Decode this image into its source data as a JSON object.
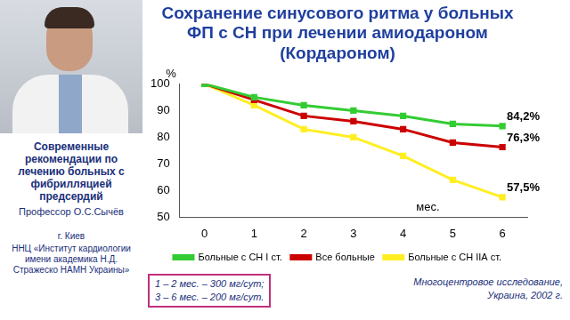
{
  "slide": {
    "heading": "Современные рекомендации по лечению больных с фибрилляцией предсердий",
    "author": "Профессор О.С.Сычёв",
    "city": "г. Киев",
    "institution": "ННЦ «Институт кардиологии имени академика Н.Д. Стражеско НАМН Украины»"
  },
  "chart_data": {
    "type": "line",
    "title": [
      "Сохранение синусового ритма у больных",
      "ФП с СН при лечении амиодароном",
      "(Кордароном)"
    ],
    "xlabel": "мес.",
    "ylabel": "%",
    "categories": [
      "0",
      "1",
      "2",
      "3",
      "4",
      "5",
      "6"
    ],
    "series": [
      {
        "name": "Больные с СН I ст.",
        "color": "#33cc33",
        "values": [
          100,
          95,
          92,
          90,
          88,
          85,
          84.2
        ],
        "value_labels": [
          null,
          null,
          null,
          null,
          null,
          null,
          "84,2%"
        ]
      },
      {
        "name": "Все больные",
        "color": "#cc0000",
        "values": [
          100,
          94,
          88,
          86,
          83,
          78,
          76.3
        ],
        "value_labels": [
          null,
          null,
          null,
          null,
          null,
          null,
          "76,3%"
        ]
      },
      {
        "name": "Больные с СН IIA ст.",
        "color": "#ffee22",
        "values": [
          100,
          92,
          83,
          80,
          73,
          64,
          57.5
        ],
        "value_labels": [
          null,
          null,
          null,
          null,
          null,
          null,
          "57,5%"
        ]
      }
    ],
    "ylim": [
      50,
      100
    ],
    "yticks": [
      50,
      60,
      70,
      80,
      90,
      100
    ],
    "grid": false,
    "legend": "bottom",
    "marker": "square",
    "line_style": "solid",
    "notes": [
      "1 – 2 мес. – 300 мг/сут;",
      "3 – 6 мес. – 200 мг/сут."
    ],
    "source": [
      "Многоцентровое исследование,",
      "Украина, 2002 г."
    ]
  }
}
